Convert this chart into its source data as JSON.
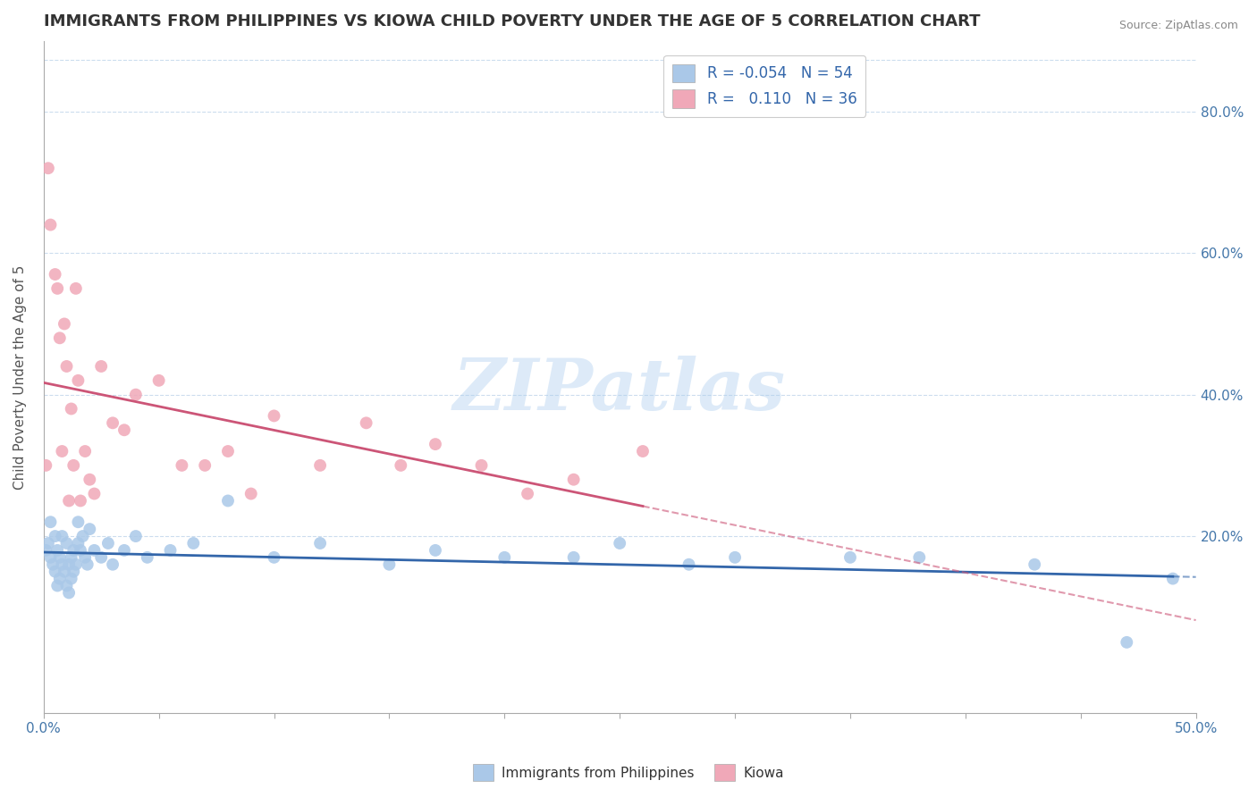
{
  "title": "IMMIGRANTS FROM PHILIPPINES VS KIOWA CHILD POVERTY UNDER THE AGE OF 5 CORRELATION CHART",
  "source": "Source: ZipAtlas.com",
  "ylabel": "Child Poverty Under the Age of 5",
  "xlim": [
    0.0,
    0.5
  ],
  "ylim": [
    -0.05,
    0.9
  ],
  "yticks_right": [
    0.2,
    0.4,
    0.6,
    0.8
  ],
  "ytick_right_labels": [
    "20.0%",
    "40.0%",
    "60.0%",
    "80.0%"
  ],
  "legend_blue_r": "-0.054",
  "legend_blue_n": "54",
  "legend_pink_r": "0.110",
  "legend_pink_n": "36",
  "blue_color": "#aac8e8",
  "pink_color": "#f0a8b8",
  "blue_line_color": "#3366aa",
  "pink_line_color": "#cc5577",
  "watermark": "ZIPatlas",
  "watermark_color": "#aaccee",
  "blue_scatter_x": [
    0.001,
    0.002,
    0.003,
    0.003,
    0.004,
    0.005,
    0.005,
    0.006,
    0.006,
    0.007,
    0.007,
    0.008,
    0.008,
    0.009,
    0.01,
    0.01,
    0.011,
    0.011,
    0.012,
    0.012,
    0.013,
    0.013,
    0.014,
    0.015,
    0.015,
    0.016,
    0.017,
    0.018,
    0.019,
    0.02,
    0.022,
    0.025,
    0.028,
    0.03,
    0.035,
    0.04,
    0.045,
    0.055,
    0.065,
    0.08,
    0.1,
    0.12,
    0.15,
    0.17,
    0.2,
    0.23,
    0.25,
    0.28,
    0.3,
    0.35,
    0.38,
    0.43,
    0.47,
    0.49
  ],
  "blue_scatter_y": [
    0.18,
    0.19,
    0.17,
    0.22,
    0.16,
    0.2,
    0.15,
    0.18,
    0.13,
    0.17,
    0.14,
    0.16,
    0.2,
    0.15,
    0.19,
    0.13,
    0.16,
    0.12,
    0.17,
    0.14,
    0.18,
    0.15,
    0.16,
    0.19,
    0.22,
    0.18,
    0.2,
    0.17,
    0.16,
    0.21,
    0.18,
    0.17,
    0.19,
    0.16,
    0.18,
    0.2,
    0.17,
    0.18,
    0.19,
    0.25,
    0.17,
    0.19,
    0.16,
    0.18,
    0.17,
    0.17,
    0.19,
    0.16,
    0.17,
    0.17,
    0.17,
    0.16,
    0.05,
    0.14
  ],
  "pink_scatter_x": [
    0.001,
    0.002,
    0.003,
    0.005,
    0.006,
    0.007,
    0.008,
    0.009,
    0.01,
    0.011,
    0.012,
    0.013,
    0.014,
    0.015,
    0.016,
    0.018,
    0.02,
    0.022,
    0.025,
    0.03,
    0.035,
    0.04,
    0.05,
    0.06,
    0.07,
    0.08,
    0.09,
    0.1,
    0.12,
    0.14,
    0.155,
    0.17,
    0.19,
    0.21,
    0.23,
    0.26
  ],
  "pink_scatter_y": [
    0.3,
    0.72,
    0.64,
    0.57,
    0.55,
    0.48,
    0.32,
    0.5,
    0.44,
    0.25,
    0.38,
    0.3,
    0.55,
    0.42,
    0.25,
    0.32,
    0.28,
    0.26,
    0.44,
    0.36,
    0.35,
    0.4,
    0.42,
    0.3,
    0.3,
    0.32,
    0.26,
    0.37,
    0.3,
    0.36,
    0.3,
    0.33,
    0.3,
    0.26,
    0.28,
    0.32
  ]
}
